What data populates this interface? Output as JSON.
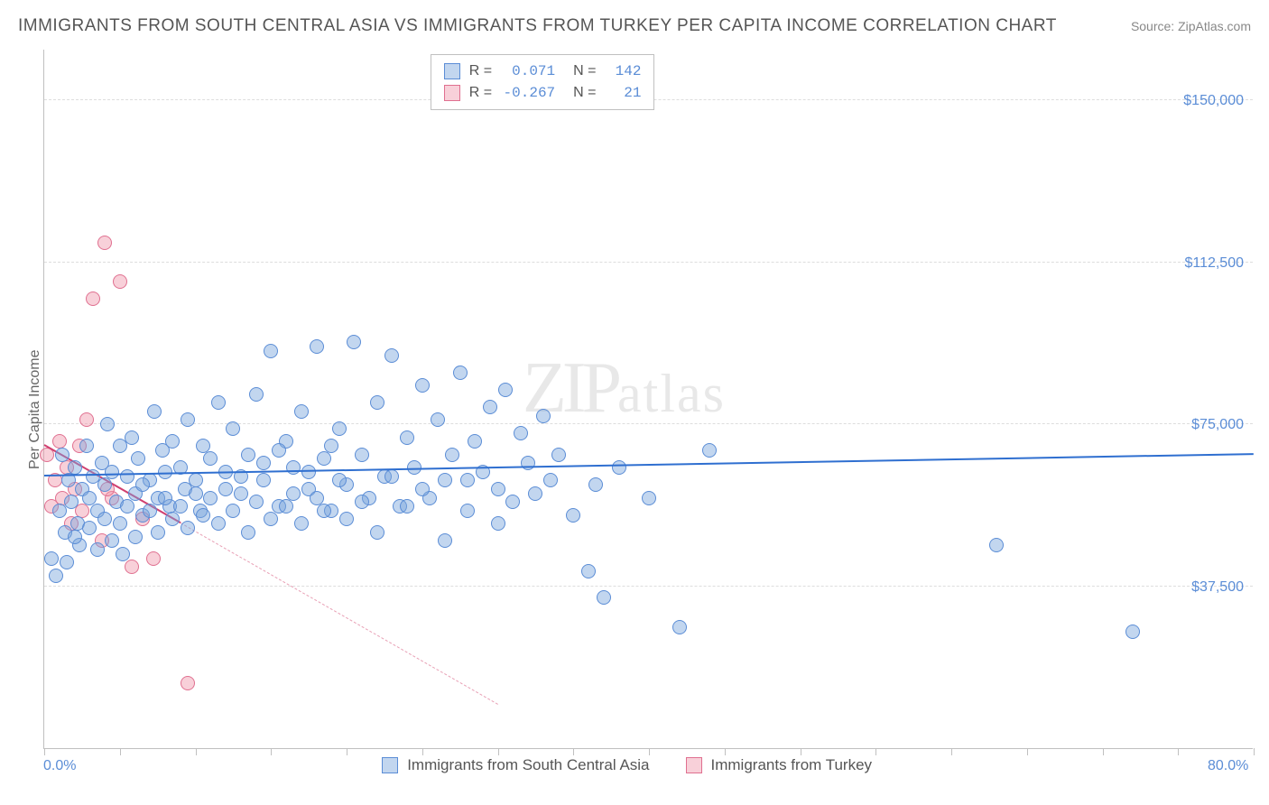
{
  "title": "IMMIGRANTS FROM SOUTH CENTRAL ASIA VS IMMIGRANTS FROM TURKEY PER CAPITA INCOME CORRELATION CHART",
  "source": "Source: ZipAtlas.com",
  "ylabel": "Per Capita Income",
  "watermark": "ZIPatlas",
  "chart": {
    "type": "scatter",
    "xlim": [
      0,
      80
    ],
    "ylim": [
      0,
      162000
    ],
    "x_ticks_pct": [
      0,
      5,
      10,
      15,
      20,
      25,
      30,
      35,
      40,
      45,
      50,
      55,
      60,
      65,
      70,
      75,
      80
    ],
    "x_tick_labels": {
      "0": "0.0%",
      "80": "80.0%"
    },
    "y_gridlines": [
      37500,
      75000,
      112500,
      150000
    ],
    "y_tick_labels": [
      "$37,500",
      "$75,000",
      "$112,500",
      "$150,000"
    ],
    "grid_color": "#dddddd",
    "axis_color": "#c0c0c0",
    "background": "#ffffff"
  },
  "series": {
    "blue": {
      "label": "Immigrants from South Central Asia",
      "fill": "rgba(120,165,220,0.45)",
      "stroke": "#5b8dd6",
      "r_label": "R =",
      "r_value": "0.071",
      "n_label": "N =",
      "n_value": "142",
      "trend": {
        "x1": 0,
        "y1": 63000,
        "x2": 80,
        "y2": 68000,
        "color": "#2f6fd0",
        "width": 2.5,
        "dash": "solid"
      },
      "marker_radius": 8,
      "points": [
        [
          0.5,
          44000
        ],
        [
          0.8,
          40000
        ],
        [
          1.0,
          55000
        ],
        [
          1.2,
          68000
        ],
        [
          1.4,
          50000
        ],
        [
          1.6,
          62000
        ],
        [
          1.8,
          57000
        ],
        [
          2.0,
          65000
        ],
        [
          2.2,
          52000
        ],
        [
          2.3,
          47000
        ],
        [
          2.5,
          60000
        ],
        [
          2.8,
          70000
        ],
        [
          3.0,
          58000
        ],
        [
          3.2,
          63000
        ],
        [
          3.5,
          55000
        ],
        [
          3.8,
          66000
        ],
        [
          4.0,
          61000
        ],
        [
          4.2,
          75000
        ],
        [
          4.5,
          64000
        ],
        [
          4.8,
          57000
        ],
        [
          5.0,
          70000
        ],
        [
          5.2,
          45000
        ],
        [
          5.5,
          63000
        ],
        [
          5.8,
          72000
        ],
        [
          6.0,
          59000
        ],
        [
          6.2,
          67000
        ],
        [
          6.5,
          54000
        ],
        [
          7.0,
          62000
        ],
        [
          7.3,
          78000
        ],
        [
          7.5,
          58000
        ],
        [
          7.8,
          69000
        ],
        [
          8.0,
          64000
        ],
        [
          8.3,
          56000
        ],
        [
          8.5,
          71000
        ],
        [
          9.0,
          65000
        ],
        [
          9.3,
          60000
        ],
        [
          9.5,
          76000
        ],
        [
          10.0,
          62000
        ],
        [
          10.3,
          55000
        ],
        [
          10.5,
          70000
        ],
        [
          11.0,
          58000
        ],
        [
          11.5,
          80000
        ],
        [
          12.0,
          64000
        ],
        [
          12.5,
          74000
        ],
        [
          13.0,
          59000
        ],
        [
          13.5,
          68000
        ],
        [
          14.0,
          82000
        ],
        [
          14.5,
          62000
        ],
        [
          15.0,
          92000
        ],
        [
          15.5,
          56000
        ],
        [
          16.0,
          71000
        ],
        [
          16.5,
          65000
        ],
        [
          17.0,
          78000
        ],
        [
          17.5,
          60000
        ],
        [
          18.0,
          93000
        ],
        [
          18.5,
          67000
        ],
        [
          19.0,
          55000
        ],
        [
          19.5,
          74000
        ],
        [
          20.0,
          61000
        ],
        [
          20.5,
          94000
        ],
        [
          21.0,
          68000
        ],
        [
          21.5,
          58000
        ],
        [
          22.0,
          80000
        ],
        [
          22.5,
          63000
        ],
        [
          23.0,
          91000
        ],
        [
          23.5,
          56000
        ],
        [
          24.0,
          72000
        ],
        [
          24.5,
          65000
        ],
        [
          25.0,
          84000
        ],
        [
          25.5,
          58000
        ],
        [
          26.0,
          76000
        ],
        [
          26.5,
          62000
        ],
        [
          27.0,
          68000
        ],
        [
          27.5,
          87000
        ],
        [
          28.0,
          55000
        ],
        [
          28.5,
          71000
        ],
        [
          29.0,
          64000
        ],
        [
          29.5,
          79000
        ],
        [
          30.0,
          60000
        ],
        [
          30.5,
          83000
        ],
        [
          31.0,
          57000
        ],
        [
          31.5,
          73000
        ],
        [
          32.0,
          66000
        ],
        [
          32.5,
          59000
        ],
        [
          33.0,
          77000
        ],
        [
          33.5,
          62000
        ],
        [
          34.0,
          68000
        ],
        [
          35.0,
          54000
        ],
        [
          36.0,
          41000
        ],
        [
          36.5,
          61000
        ],
        [
          37.0,
          35000
        ],
        [
          38.0,
          65000
        ],
        [
          40.0,
          58000
        ],
        [
          42.0,
          28000
        ],
        [
          44.0,
          69000
        ],
        [
          63.0,
          47000
        ],
        [
          72.0,
          27000
        ],
        [
          1.5,
          43000
        ],
        [
          2.0,
          49000
        ],
        [
          3.0,
          51000
        ],
        [
          3.5,
          46000
        ],
        [
          4.0,
          53000
        ],
        [
          4.5,
          48000
        ],
        [
          5.0,
          52000
        ],
        [
          5.5,
          56000
        ],
        [
          6.0,
          49000
        ],
        [
          6.5,
          61000
        ],
        [
          7.0,
          55000
        ],
        [
          7.5,
          50000
        ],
        [
          8.0,
          58000
        ],
        [
          8.5,
          53000
        ],
        [
          9.0,
          56000
        ],
        [
          9.5,
          51000
        ],
        [
          10.0,
          59000
        ],
        [
          10.5,
          54000
        ],
        [
          11.0,
          67000
        ],
        [
          11.5,
          52000
        ],
        [
          12.0,
          60000
        ],
        [
          12.5,
          55000
        ],
        [
          13.0,
          63000
        ],
        [
          13.5,
          50000
        ],
        [
          14.0,
          57000
        ],
        [
          14.5,
          66000
        ],
        [
          15.0,
          53000
        ],
        [
          15.5,
          69000
        ],
        [
          16.0,
          56000
        ],
        [
          16.5,
          59000
        ],
        [
          17.0,
          52000
        ],
        [
          17.5,
          64000
        ],
        [
          18.0,
          58000
        ],
        [
          18.5,
          55000
        ],
        [
          19.0,
          70000
        ],
        [
          19.5,
          62000
        ],
        [
          20.0,
          53000
        ],
        [
          21.0,
          57000
        ],
        [
          22.0,
          50000
        ],
        [
          23.0,
          63000
        ],
        [
          24.0,
          56000
        ],
        [
          25.0,
          60000
        ],
        [
          26.5,
          48000
        ],
        [
          28.0,
          62000
        ],
        [
          30.0,
          52000
        ]
      ]
    },
    "pink": {
      "label": "Immigrants from Turkey",
      "fill": "rgba(240,150,170,0.45)",
      "stroke": "#e07090",
      "r_label": "R =",
      "r_value": "-0.267",
      "n_label": "N =",
      "n_value": "21",
      "trend": {
        "x1": 0,
        "y1": 70000,
        "x2": 9,
        "y2": 52000,
        "color": "#d04070",
        "width": 2.5,
        "dash": "solid"
      },
      "trend_ext": {
        "x1": 9,
        "y1": 52000,
        "x2": 30,
        "y2": 10000,
        "color": "#e8a0b5",
        "width": 1.5,
        "dash": "dashed"
      },
      "marker_radius": 8,
      "points": [
        [
          0.2,
          68000
        ],
        [
          0.5,
          56000
        ],
        [
          0.7,
          62000
        ],
        [
          1.0,
          71000
        ],
        [
          1.2,
          58000
        ],
        [
          1.5,
          65000
        ],
        [
          1.8,
          52000
        ],
        [
          2.0,
          60000
        ],
        [
          2.3,
          70000
        ],
        [
          2.5,
          55000
        ],
        [
          2.8,
          76000
        ],
        [
          3.2,
          104000
        ],
        [
          3.8,
          48000
        ],
        [
          4.0,
          117000
        ],
        [
          4.5,
          58000
        ],
        [
          5.0,
          108000
        ],
        [
          5.8,
          42000
        ],
        [
          6.5,
          53000
        ],
        [
          7.2,
          44000
        ],
        [
          9.5,
          15000
        ],
        [
          4.2,
          60000
        ]
      ]
    }
  }
}
